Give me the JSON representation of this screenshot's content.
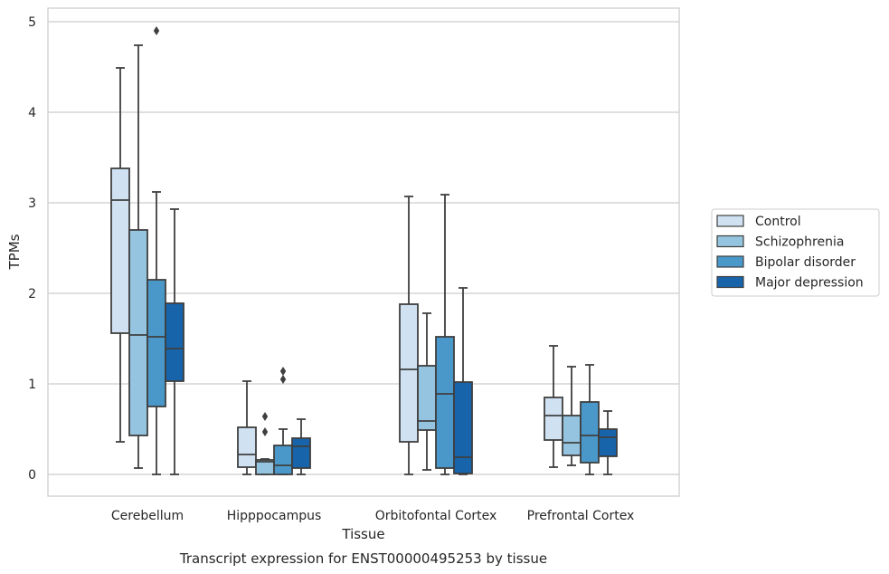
{
  "caption": "Transcript expression for ENST00000495253 by tissue",
  "chart_data": {
    "type": "box",
    "xlabel": "Tissue",
    "ylabel": "TPMs",
    "ylim": [
      -0.23,
      5.15
    ],
    "yticks": [
      0,
      1,
      2,
      3,
      4,
      5
    ],
    "grid": "horizontal",
    "legend_position": "right",
    "categories": [
      "Cerebellum",
      "Hipppocampus",
      "Orbitofontal Cortex",
      "Prefrontal Cortex"
    ],
    "series": [
      {
        "name": "Control",
        "color": "#d0e1f2",
        "boxes": [
          {
            "whislo": 0.36,
            "q1": 1.56,
            "med": 3.03,
            "q3": 3.38,
            "whishi": 4.49,
            "fliers": []
          },
          {
            "whislo": 0.0,
            "q1": 0.08,
            "med": 0.22,
            "q3": 0.52,
            "whishi": 1.03,
            "fliers": []
          },
          {
            "whislo": 0.0,
            "q1": 0.36,
            "med": 1.16,
            "q3": 1.88,
            "whishi": 3.07,
            "fliers": []
          },
          {
            "whislo": 0.08,
            "q1": 0.38,
            "med": 0.65,
            "q3": 0.85,
            "whishi": 1.42,
            "fliers": []
          }
        ]
      },
      {
        "name": "Schizophrenia",
        "color": "#94c4df",
        "boxes": [
          {
            "whislo": 0.07,
            "q1": 0.43,
            "med": 1.54,
            "q3": 2.7,
            "whishi": 4.74,
            "fliers": []
          },
          {
            "whislo": 0.0,
            "q1": 0.0,
            "med": 0.14,
            "q3": 0.16,
            "whishi": 0.17,
            "fliers": [
              0.47,
              0.64
            ]
          },
          {
            "whislo": 0.05,
            "q1": 0.49,
            "med": 0.59,
            "q3": 1.2,
            "whishi": 1.78,
            "fliers": []
          },
          {
            "whislo": 0.1,
            "q1": 0.21,
            "med": 0.35,
            "q3": 0.65,
            "whishi": 1.19,
            "fliers": []
          }
        ]
      },
      {
        "name": "Bipolar disorder",
        "color": "#4a98c9",
        "boxes": [
          {
            "whislo": 0.0,
            "q1": 0.75,
            "med": 1.52,
            "q3": 2.15,
            "whishi": 3.12,
            "fliers": [
              4.9
            ]
          },
          {
            "whislo": 0.0,
            "q1": 0.0,
            "med": 0.1,
            "q3": 0.32,
            "whishi": 0.5,
            "fliers": [
              1.05,
              1.14
            ]
          },
          {
            "whislo": 0.0,
            "q1": 0.07,
            "med": 0.89,
            "q3": 1.52,
            "whishi": 3.09,
            "fliers": []
          },
          {
            "whislo": 0.0,
            "q1": 0.13,
            "med": 0.43,
            "q3": 0.8,
            "whishi": 1.21,
            "fliers": []
          }
        ]
      },
      {
        "name": "Major depression",
        "color": "#1764ab",
        "boxes": [
          {
            "whislo": 0.0,
            "q1": 1.03,
            "med": 1.39,
            "q3": 1.89,
            "whishi": 2.93,
            "fliers": []
          },
          {
            "whislo": 0.0,
            "q1": 0.07,
            "med": 0.31,
            "q3": 0.4,
            "whishi": 0.61,
            "fliers": []
          },
          {
            "whislo": 0.0,
            "q1": 0.01,
            "med": 0.19,
            "q3": 1.02,
            "whishi": 2.06,
            "fliers": []
          },
          {
            "whislo": 0.0,
            "q1": 0.2,
            "med": 0.41,
            "q3": 0.5,
            "whishi": 0.7,
            "fliers": []
          }
        ]
      }
    ]
  }
}
